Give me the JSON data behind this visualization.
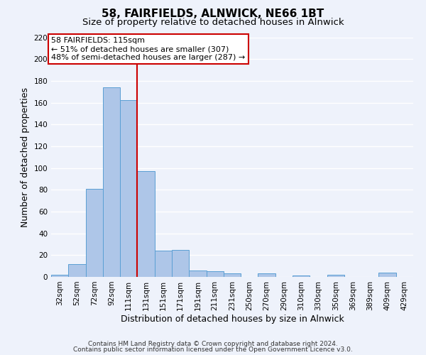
{
  "title": "58, FAIRFIELDS, ALNWICK, NE66 1BT",
  "subtitle": "Size of property relative to detached houses in Alnwick",
  "xlabel": "Distribution of detached houses by size in Alnwick",
  "ylabel": "Number of detached properties",
  "bar_labels": [
    "32sqm",
    "52sqm",
    "72sqm",
    "92sqm",
    "111sqm",
    "131sqm",
    "151sqm",
    "171sqm",
    "191sqm",
    "211sqm",
    "231sqm",
    "250sqm",
    "270sqm",
    "290sqm",
    "310sqm",
    "330sqm",
    "350sqm",
    "369sqm",
    "389sqm",
    "409sqm",
    "429sqm"
  ],
  "bar_values": [
    2,
    12,
    81,
    174,
    162,
    97,
    24,
    25,
    6,
    5,
    3,
    0,
    3,
    0,
    1,
    0,
    2,
    0,
    0,
    4,
    0
  ],
  "bar_color": "#aec6e8",
  "bar_edge_color": "#5a9fd4",
  "vline_x": 4.5,
  "vline_color": "#cc0000",
  "annotation_title": "58 FAIRFIELDS: 115sqm",
  "annotation_line1": "← 51% of detached houses are smaller (307)",
  "annotation_line2": "48% of semi-detached houses are larger (287) →",
  "annotation_box_color": "white",
  "annotation_box_edge": "#cc0000",
  "ylim": [
    0,
    220
  ],
  "yticks": [
    0,
    20,
    40,
    60,
    80,
    100,
    120,
    140,
    160,
    180,
    200,
    220
  ],
  "footer1": "Contains HM Land Registry data © Crown copyright and database right 2024.",
  "footer2": "Contains public sector information licensed under the Open Government Licence v3.0.",
  "background_color": "#eef2fb",
  "grid_color": "#ffffff",
  "title_fontsize": 11,
  "subtitle_fontsize": 9.5,
  "axis_label_fontsize": 9,
  "tick_fontsize": 7.5,
  "footer_fontsize": 6.5
}
